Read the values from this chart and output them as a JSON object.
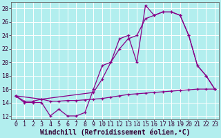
{
  "xlabel": "Windchill (Refroidissement éolien,°C)",
  "background_color": "#b2eeee",
  "line_color": "#880088",
  "grid_color": "#ffffff",
  "xlim": [
    -0.5,
    23.5
  ],
  "ylim": [
    11.5,
    29
  ],
  "yticks": [
    12,
    14,
    16,
    18,
    20,
    22,
    24,
    26,
    28
  ],
  "xticks": [
    0,
    1,
    2,
    3,
    4,
    5,
    6,
    7,
    8,
    9,
    10,
    11,
    12,
    13,
    14,
    15,
    16,
    17,
    18,
    19,
    20,
    21,
    22,
    23
  ],
  "line1_x": [
    0,
    1,
    2,
    3,
    4,
    5,
    6,
    7,
    8,
    9,
    10,
    11,
    12,
    13,
    14,
    15,
    16,
    17,
    18,
    19,
    20,
    21,
    22,
    23
  ],
  "line1_y": [
    15,
    14,
    14,
    14,
    12,
    13,
    12,
    12,
    12.5,
    16,
    19.5,
    20,
    23.5,
    24,
    20,
    28.5,
    27,
    27.5,
    27.5,
    27,
    24,
    19.5,
    18,
    16
  ],
  "line2_x": [
    0,
    3,
    9,
    10,
    11,
    12,
    13,
    14,
    15,
    16,
    17,
    18,
    19,
    20,
    21,
    22,
    23
  ],
  "line2_y": [
    15,
    14.5,
    15.5,
    17.5,
    20,
    22,
    23.5,
    24,
    26.5,
    27,
    27.5,
    27.5,
    27,
    24,
    19.5,
    18,
    16
  ],
  "line3_x": [
    0,
    1,
    2,
    3,
    4,
    5,
    6,
    7,
    8,
    9,
    10,
    11,
    12,
    13,
    14,
    15,
    16,
    17,
    18,
    19,
    20,
    21,
    22,
    23
  ],
  "line3_y": [
    15,
    14.2,
    14.2,
    14.5,
    14.2,
    14.2,
    14.3,
    14.3,
    14.4,
    14.5,
    14.6,
    14.8,
    15.0,
    15.2,
    15.3,
    15.4,
    15.5,
    15.6,
    15.7,
    15.8,
    15.9,
    16.0,
    16.0,
    16.0
  ],
  "font_size": 6.5,
  "tick_font_size": 6.0,
  "xlabel_font_size": 7.0
}
